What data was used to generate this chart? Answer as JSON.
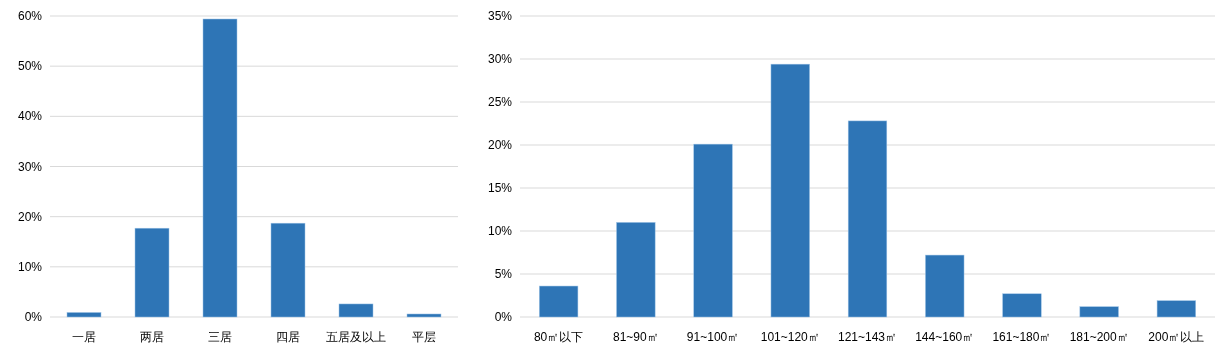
{
  "chart_data": [
    {
      "type": "bar",
      "categories": [
        "一居",
        "两居",
        "三居",
        "四居",
        "五居及以上",
        "平层"
      ],
      "values": [
        0.9,
        17.7,
        59.4,
        18.7,
        2.6,
        0.6
      ],
      "color": "#2e75b6",
      "ylim": [
        0,
        60
      ],
      "yticks": [
        {
          "value": 0,
          "label": "0%"
        },
        {
          "value": 10,
          "label": "10%"
        },
        {
          "value": 20,
          "label": "20%"
        },
        {
          "value": 30,
          "label": "30%"
        },
        {
          "value": 40,
          "label": "40%"
        },
        {
          "value": 50,
          "label": "50%"
        },
        {
          "value": 60,
          "label": "60%"
        }
      ],
      "grid": "y"
    },
    {
      "type": "bar",
      "categories": [
        "80㎡以下",
        "81~90㎡",
        "91~100㎡",
        "101~120㎡",
        "121~143㎡",
        "144~160㎡",
        "161~180㎡",
        "181~200㎡",
        "200㎡以上"
      ],
      "values": [
        3.6,
        11.0,
        20.1,
        29.4,
        22.8,
        7.2,
        2.7,
        1.2,
        1.9
      ],
      "color": "#2e75b6",
      "ylim": [
        0,
        35
      ],
      "yticks": [
        {
          "value": 0,
          "label": "0%"
        },
        {
          "value": 5,
          "label": "5%"
        },
        {
          "value": 10,
          "label": "10%"
        },
        {
          "value": 15,
          "label": "15%"
        },
        {
          "value": 20,
          "label": "20%"
        },
        {
          "value": 25,
          "label": "25%"
        },
        {
          "value": 30,
          "label": "30%"
        },
        {
          "value": 35,
          "label": "35%"
        }
      ],
      "grid": "y"
    }
  ]
}
